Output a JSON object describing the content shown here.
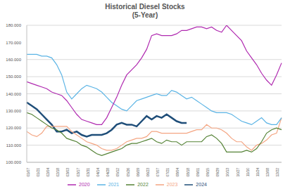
{
  "chart_data": {
    "type": "line",
    "title": "Historical Diesel Stocks",
    "subtitle": "(5-Year)",
    "categories": [
      "01/07",
      null,
      "01/21",
      null,
      "02/04",
      null,
      "02/18",
      null,
      "03/03",
      null,
      "03/17",
      null,
      "03/31",
      null,
      "04/14",
      null,
      "04/28",
      null,
      "05/12",
      null,
      "05/26",
      null,
      "06/09",
      null,
      "06/23",
      null,
      "07/07",
      null,
      "07/21",
      null,
      "08/04",
      null,
      "08/18",
      null,
      "09/01",
      null,
      "09/15",
      null,
      "09/29",
      null,
      "10/13",
      null,
      "10/27",
      null,
      "11/10",
      null,
      "11/24",
      null,
      "12/08",
      null,
      "12/22",
      null
    ],
    "series": [
      {
        "name": "2024",
        "color": "#1f4e79",
        "values": [
          135000,
          133000,
          131000,
          128000,
          125000,
          122000,
          118000,
          118000,
          119000,
          117000,
          118000,
          116000,
          115000,
          116000,
          116000,
          116000,
          117000,
          119000,
          122000,
          123000,
          122000,
          122000,
          121000,
          124000,
          127000,
          125000,
          127000,
          126000,
          128000,
          126000,
          124000,
          123000,
          123000,
          null,
          null,
          null,
          null,
          null,
          null,
          null,
          null,
          null,
          null,
          null,
          null,
          null,
          null,
          null,
          null,
          null,
          null,
          null
        ]
      },
      {
        "name": "2023",
        "color": "#f4a582",
        "values": [
          118000,
          116000,
          115000,
          117000,
          121000,
          121000,
          121000,
          121000,
          121000,
          118000,
          116000,
          114000,
          112000,
          111000,
          110000,
          108000,
          107000,
          107000,
          108000,
          110000,
          112000,
          113000,
          114000,
          114000,
          115000,
          118000,
          118000,
          117000,
          117000,
          117000,
          117000,
          117000,
          117000,
          118000,
          119000,
          119000,
          122000,
          120000,
          120000,
          119000,
          117000,
          114000,
          112000,
          112000,
          109000,
          107000,
          110000,
          111000,
          113000,
          116000,
          117000,
          126000
        ]
      },
      {
        "name": "2022",
        "color": "#548235",
        "values": [
          129000,
          128000,
          126000,
          124000,
          122000,
          120000,
          119000,
          117000,
          114000,
          113000,
          112000,
          110000,
          109000,
          107000,
          105000,
          104000,
          105000,
          106000,
          107000,
          108000,
          110000,
          111000,
          111000,
          112000,
          113000,
          114000,
          112000,
          111000,
          113000,
          112000,
          112000,
          110000,
          112000,
          112000,
          112000,
          112000,
          115000,
          116000,
          114000,
          111000,
          106000,
          106000,
          106000,
          106000,
          107000,
          106000,
          108000,
          112000,
          117000,
          119000,
          120000,
          119000
        ]
      },
      {
        "name": "2021",
        "color": "#5bb4e5",
        "values": [
          163000,
          163000,
          163000,
          162000,
          162000,
          161000,
          157000,
          151000,
          141000,
          137000,
          140000,
          143000,
          145000,
          144000,
          143000,
          141000,
          138000,
          135000,
          133000,
          131000,
          130000,
          133000,
          136000,
          137000,
          138000,
          139000,
          140000,
          139000,
          139000,
          142000,
          141000,
          139000,
          137000,
          138000,
          136000,
          134000,
          132000,
          130000,
          129000,
          129000,
          129000,
          128000,
          126000,
          124000,
          123000,
          122000,
          124000,
          126000,
          123000,
          122000,
          122000,
          126000
        ]
      },
      {
        "name": "2020",
        "color": "#b02ab0",
        "values": [
          147000,
          146000,
          145000,
          144000,
          143000,
          141000,
          140000,
          139000,
          136000,
          132000,
          128000,
          125000,
          124000,
          123000,
          122000,
          122000,
          126000,
          132000,
          138000,
          145000,
          151000,
          154000,
          157000,
          161000,
          166000,
          174000,
          175000,
          174000,
          174000,
          174000,
          175000,
          177000,
          177000,
          178000,
          179000,
          179000,
          178000,
          179000,
          177000,
          176000,
          180000,
          177000,
          174000,
          171000,
          165000,
          161000,
          157000,
          152000,
          148000,
          145000,
          151000,
          158000
        ]
      }
    ],
    "ylim": [
      100000,
      180000
    ],
    "yticks": [
      {
        "value": 100000,
        "label": "100.000"
      },
      {
        "value": 110000,
        "label": "110.000"
      },
      {
        "value": 120000,
        "label": "120.000"
      },
      {
        "value": 130000,
        "label": "130.000"
      },
      {
        "value": 140000,
        "label": "140.000"
      },
      {
        "value": 150000,
        "label": "150.000"
      },
      {
        "value": 160000,
        "label": "160.000"
      },
      {
        "value": 170000,
        "label": "170.000"
      },
      {
        "value": 180000,
        "label": "180.000"
      }
    ],
    "grid": true,
    "legend": "bottom"
  }
}
